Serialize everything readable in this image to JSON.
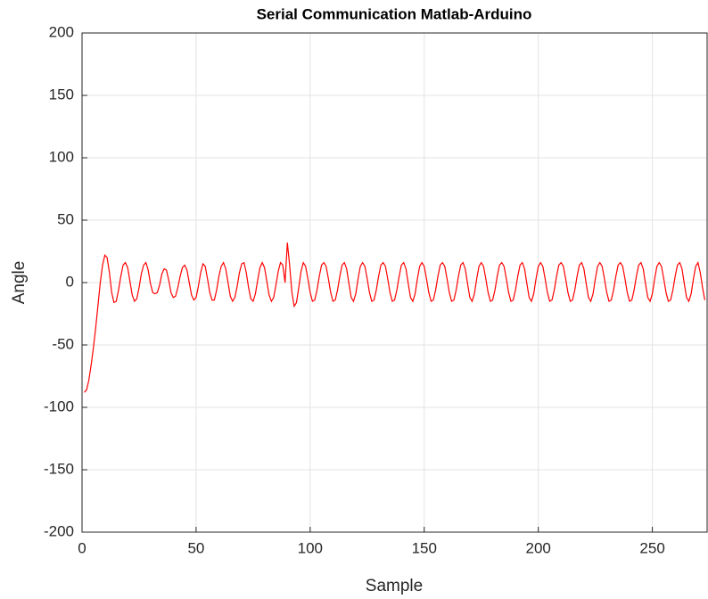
{
  "chart_data": {
    "type": "line",
    "title": "Serial Communication Matlab-Arduino",
    "x_label": "Sample",
    "y_label": "Angle",
    "x": [
      1,
      2,
      3,
      4,
      5,
      6,
      7,
      8,
      9,
      10,
      11,
      12,
      13,
      14,
      15,
      16,
      17,
      18,
      19,
      20,
      21,
      22,
      23,
      24,
      25,
      26,
      27,
      28,
      29,
      30,
      31,
      32,
      33,
      34,
      35,
      36,
      37,
      38,
      39,
      40,
      41,
      42,
      43,
      44,
      45,
      46,
      47,
      48,
      49,
      50,
      51,
      52,
      53,
      54,
      55,
      56,
      57,
      58,
      59,
      60,
      61,
      62,
      63,
      64,
      65,
      66,
      67,
      68,
      69,
      70,
      71,
      72,
      73,
      74,
      75,
      76,
      77,
      78,
      79,
      80,
      81,
      82,
      83,
      84,
      85,
      86,
      87,
      88,
      89,
      90,
      91,
      92,
      93,
      94,
      95,
      96,
      97,
      98,
      99,
      100,
      101,
      102,
      103,
      104,
      105,
      106,
      107,
      108,
      109,
      110,
      111,
      112,
      113,
      114,
      115,
      116,
      117,
      118,
      119,
      120,
      121,
      122,
      123,
      124,
      125,
      126,
      127,
      128,
      129,
      130,
      131,
      132,
      133,
      134,
      135,
      136,
      137,
      138,
      139,
      140,
      141,
      142,
      143,
      144,
      145,
      146,
      147,
      148,
      149,
      150,
      151,
      152,
      153,
      154,
      155,
      156,
      157,
      158,
      159,
      160,
      161,
      162,
      163,
      164,
      165,
      166,
      167,
      168,
      169,
      170,
      171,
      172,
      173,
      174,
      175,
      176,
      177,
      178,
      179,
      180,
      181,
      182,
      183,
      184,
      185,
      186,
      187,
      188,
      189,
      190,
      191,
      192,
      193,
      194,
      195,
      196,
      197,
      198,
      199,
      200,
      201,
      202,
      203,
      204,
      205,
      206,
      207,
      208,
      209,
      210,
      211,
      212,
      213,
      214,
      215,
      216,
      217,
      218,
      219,
      220,
      221,
      222,
      223,
      224,
      225,
      226,
      227,
      228,
      229,
      230,
      231,
      232,
      233,
      234,
      235,
      236,
      237,
      238,
      239,
      240,
      241,
      242,
      243,
      244,
      245,
      246,
      247,
      248,
      249,
      250,
      251,
      252,
      253,
      254,
      255,
      256,
      257,
      258,
      259,
      260,
      261,
      262,
      263,
      264,
      265,
      266,
      267,
      268,
      269,
      270,
      271,
      272,
      273
    ],
    "series": [
      {
        "color": "#ff0000",
        "values": [
          -88,
          -86,
          -78,
          -66,
          -52,
          -36,
          -18,
          0,
          14,
          22,
          20,
          8,
          -8,
          -16,
          -15,
          -6,
          5,
          14,
          16,
          12,
          1,
          -10,
          -15,
          -13,
          -4,
          7,
          14,
          16,
          10,
          -1,
          -8,
          -9,
          -8,
          -2,
          7,
          11,
          10,
          2,
          -8,
          -12,
          -11,
          -4,
          5,
          12,
          14,
          10,
          0,
          -10,
          -14,
          -12,
          -3,
          8,
          15,
          13,
          3,
          -8,
          -14,
          -14,
          -6,
          5,
          13,
          16,
          11,
          0,
          -11,
          -15,
          -12,
          -3,
          8,
          15,
          16,
          8,
          -4,
          -13,
          -15,
          -9,
          2,
          12,
          16,
          12,
          1,
          -10,
          -15,
          -12,
          -2,
          9,
          16,
          14,
          0,
          32,
          14,
          -8,
          -19,
          -16,
          -4,
          9,
          16,
          13,
          3,
          -8,
          -15,
          -14,
          -6,
          5,
          14,
          16,
          13,
          3,
          -8,
          -15,
          -14,
          -6,
          5,
          14,
          16,
          11,
          -1,
          -12,
          -15,
          -9,
          3,
          13,
          16,
          13,
          3,
          -8,
          -15,
          -14,
          -6,
          5,
          14,
          16,
          13,
          3,
          -8,
          -15,
          -14,
          -6,
          5,
          14,
          16,
          11,
          -1,
          -12,
          -15,
          -9,
          3,
          13,
          16,
          13,
          3,
          -8,
          -15,
          -14,
          -6,
          5,
          14,
          16,
          13,
          3,
          -8,
          -15,
          -14,
          -6,
          5,
          14,
          16,
          11,
          -1,
          -12,
          -15,
          -9,
          3,
          13,
          16,
          13,
          3,
          -8,
          -15,
          -14,
          -6,
          5,
          14,
          16,
          13,
          3,
          -8,
          -15,
          -14,
          -6,
          5,
          14,
          16,
          11,
          -1,
          -12,
          -15,
          -9,
          3,
          13,
          16,
          13,
          3,
          -8,
          -15,
          -14,
          -6,
          5,
          14,
          16,
          13,
          3,
          -8,
          -15,
          -14,
          -6,
          5,
          14,
          16,
          11,
          -1,
          -12,
          -15,
          -9,
          3,
          13,
          16,
          13,
          3,
          -8,
          -15,
          -14,
          -6,
          5,
          14,
          16,
          13,
          3,
          -8,
          -15,
          -14,
          -6,
          5,
          14,
          16,
          11,
          -1,
          -12,
          -15,
          -9,
          3,
          13,
          16,
          13,
          3,
          -8,
          -15,
          -14,
          -6,
          5,
          14,
          16,
          11,
          -1,
          -12,
          -15,
          -9,
          3,
          13,
          16,
          8,
          -4,
          -14
        ]
      }
    ],
    "xlim": [
      0,
      274
    ],
    "ylim": [
      -200,
      200
    ],
    "xticks": [
      0,
      50,
      100,
      150,
      200,
      250
    ],
    "yticks": [
      -200,
      -150,
      -100,
      -50,
      0,
      50,
      100,
      150,
      200
    ],
    "grid": true
  }
}
